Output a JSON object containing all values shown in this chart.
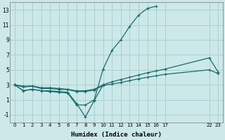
{
  "xlabel": "Humidex (Indice chaleur)",
  "bg_color": "#cce8e8",
  "grid_color": "#aad0d0",
  "line_color": "#1a6b6b",
  "xlim": [
    -0.5,
    23.5
  ],
  "ylim": [
    -2.0,
    14.0
  ],
  "yticks": [
    -1,
    1,
    3,
    5,
    7,
    9,
    11,
    13
  ],
  "xtick_positions": [
    0,
    1,
    2,
    3,
    4,
    5,
    6,
    7,
    8,
    9,
    10,
    11,
    12,
    13,
    14,
    15,
    16,
    17,
    22,
    23
  ],
  "xtick_labels": [
    "0",
    "1",
    "2",
    "3",
    "4",
    "5",
    "6",
    "7",
    "8",
    "9",
    "10",
    "11",
    "12",
    "13",
    "14",
    "15",
    "16",
    "17",
    "22",
    "23"
  ],
  "series": [
    {
      "x": [
        0,
        1,
        2,
        3,
        4,
        5,
        6,
        7,
        8,
        9,
        10,
        11,
        12,
        13,
        14,
        15,
        16
      ],
      "y": [
        3.0,
        2.2,
        2.4,
        2.2,
        2.1,
        2.0,
        1.9,
        0.3,
        0.3,
        1.0,
        5.1,
        7.6,
        9.0,
        10.8,
        12.3,
        13.2,
        13.5
      ]
    },
    {
      "x": [
        0,
        1,
        2,
        3,
        4,
        5,
        6,
        7,
        8,
        9,
        10
      ],
      "y": [
        3.0,
        2.2,
        2.4,
        2.2,
        2.2,
        2.1,
        2.0,
        0.5,
        -1.3,
        0.9,
        3.0
      ]
    },
    {
      "x": [
        0,
        1,
        2,
        3,
        4,
        5,
        6,
        7,
        8,
        9,
        10,
        11,
        12,
        13,
        14,
        15,
        16,
        17,
        22,
        23
      ],
      "y": [
        3.0,
        2.8,
        2.85,
        2.6,
        2.6,
        2.5,
        2.4,
        2.2,
        2.2,
        2.4,
        3.0,
        3.4,
        3.7,
        4.0,
        4.3,
        4.6,
        4.85,
        5.1,
        6.6,
        4.7
      ]
    },
    {
      "x": [
        0,
        1,
        2,
        3,
        4,
        5,
        6,
        7,
        8,
        9,
        10,
        11,
        12,
        13,
        14,
        15,
        16,
        17,
        22,
        23
      ],
      "y": [
        3.0,
        2.7,
        2.8,
        2.5,
        2.5,
        2.4,
        2.35,
        2.1,
        2.1,
        2.3,
        2.9,
        3.1,
        3.3,
        3.55,
        3.8,
        4.0,
        4.2,
        4.4,
        5.0,
        4.5
      ]
    }
  ]
}
